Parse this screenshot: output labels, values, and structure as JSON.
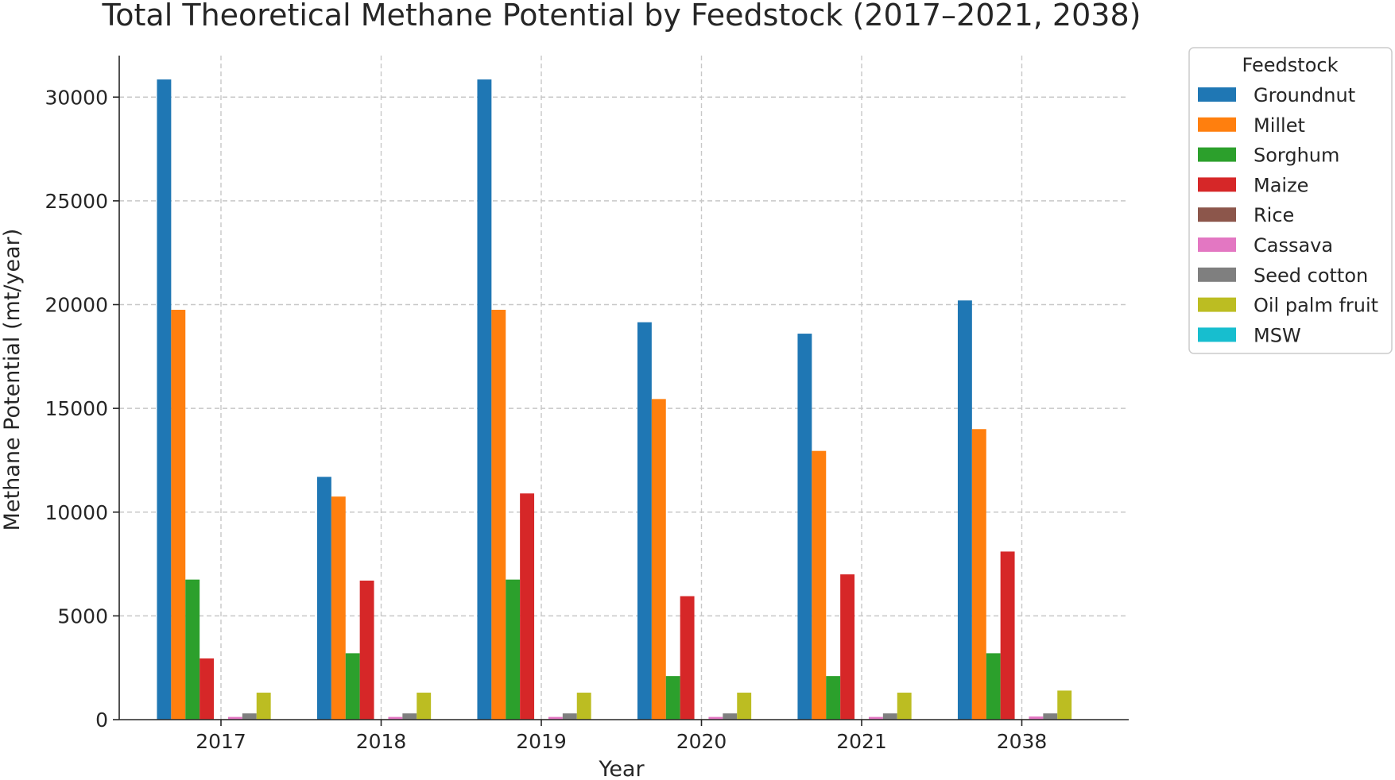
{
  "chart_data": {
    "type": "bar",
    "title": "Total Theoretical Methane Potential by Feedstock (2017–2021, 2038)",
    "xlabel": "Year",
    "ylabel": "Methane Potential (mt/year)",
    "categories": [
      "2017",
      "2018",
      "2019",
      "2020",
      "2021",
      "2038"
    ],
    "ylim": [
      0,
      32000
    ],
    "yticks": [
      0,
      5000,
      10000,
      15000,
      20000,
      25000,
      30000
    ],
    "grid": true,
    "legend_title": "Feedstock",
    "legend_position": "right-outside-top",
    "series": [
      {
        "name": "Groundnut",
        "color": "#1f77b4",
        "values": [
          30850,
          11700,
          30850,
          19150,
          18600,
          20200
        ]
      },
      {
        "name": "Millet",
        "color": "#ff7f0e",
        "values": [
          19750,
          10750,
          19750,
          15450,
          12950,
          14000
        ]
      },
      {
        "name": "Sorghum",
        "color": "#2ca02c",
        "values": [
          6750,
          3200,
          6750,
          2100,
          2100,
          3200
        ]
      },
      {
        "name": "Maize",
        "color": "#d62728",
        "values": [
          2950,
          6700,
          10900,
          5950,
          7000,
          8100
        ]
      },
      {
        "name": "Rice",
        "color": "#8c564b",
        "values": [
          25,
          25,
          25,
          25,
          25,
          25
        ]
      },
      {
        "name": "Cassava",
        "color": "#e377c2",
        "values": [
          130,
          130,
          130,
          130,
          130,
          150
        ]
      },
      {
        "name": "Seed cotton",
        "color": "#7f7f7f",
        "values": [
          300,
          300,
          300,
          300,
          300,
          300
        ]
      },
      {
        "name": "Oil palm fruit",
        "color": "#bcbd22",
        "values": [
          1300,
          1300,
          1300,
          1300,
          1300,
          1400
        ]
      },
      {
        "name": "MSW",
        "color": "#17becf",
        "values": [
          0,
          0,
          0,
          0,
          0,
          0
        ]
      }
    ]
  }
}
